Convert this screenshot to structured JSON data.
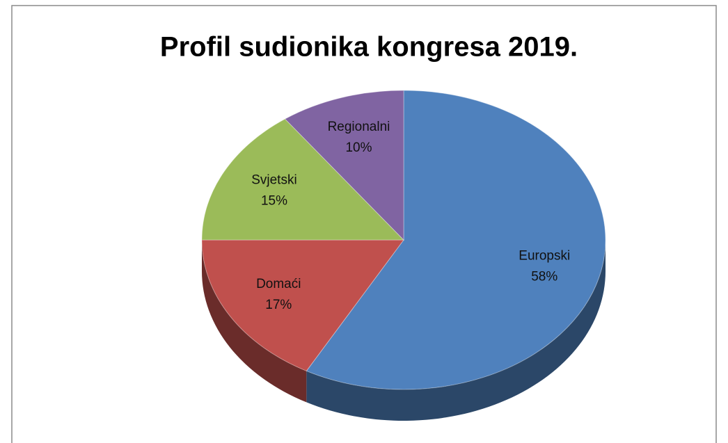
{
  "chart_data": {
    "type": "pie",
    "title": "Profil sudionika kongresa 2019.",
    "categories": [
      "Europski",
      "Domaći",
      "Svjetski",
      "Regionalni"
    ],
    "values": [
      58,
      17,
      15,
      10
    ],
    "value_labels": [
      "58%",
      "17%",
      "15%",
      "10%"
    ],
    "colors": [
      "#4f81bd",
      "#c0504d",
      "#9bbb59",
      "#8064a2"
    ]
  }
}
